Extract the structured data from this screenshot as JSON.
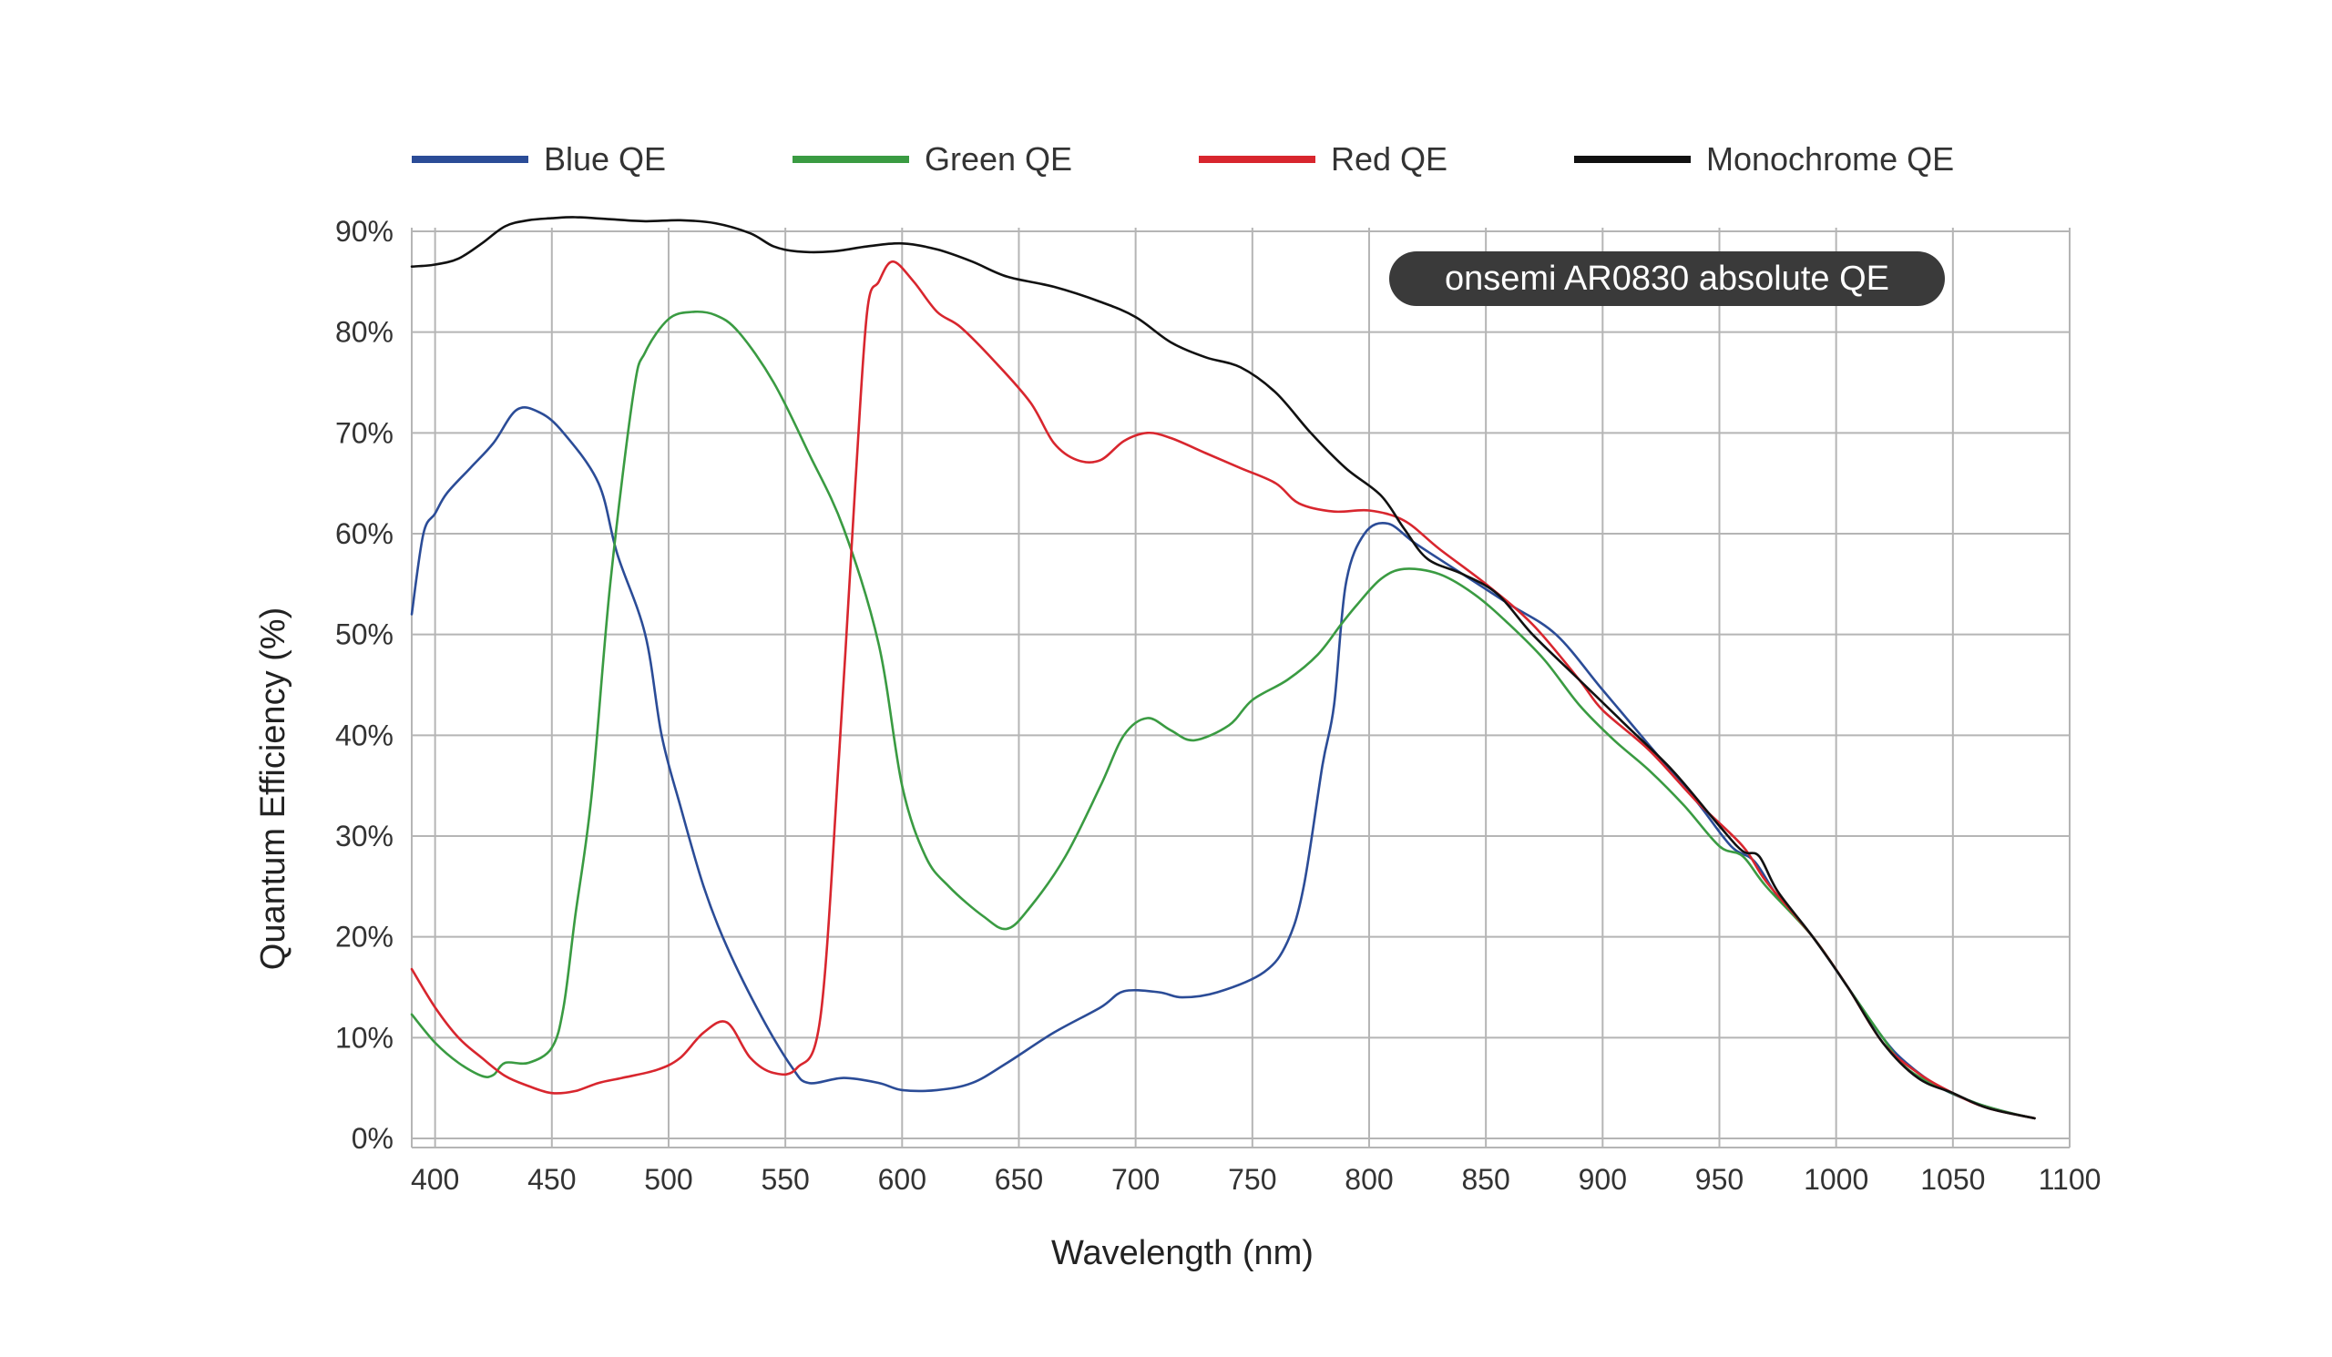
{
  "chart_data": {
    "type": "line",
    "title": "",
    "annotation": "onsemi AR0830 absolute QE",
    "xlabel": "Wavelength (nm)",
    "ylabel": "Quantum Efficiency (%)",
    "xlim": [
      390,
      1100
    ],
    "ylim": [
      0,
      90
    ],
    "x_ticks": [
      400,
      450,
      500,
      550,
      600,
      650,
      700,
      750,
      800,
      850,
      900,
      950,
      1000,
      1050,
      1100
    ],
    "y_ticks": [
      0,
      10,
      20,
      30,
      40,
      50,
      60,
      70,
      80,
      90
    ],
    "y_tick_labels": [
      "0%",
      "10%",
      "20%",
      "30%",
      "40%",
      "50%",
      "60%",
      "70%",
      "80%",
      "90%"
    ],
    "grid": true,
    "legend_position": "top",
    "series": [
      {
        "name": "Blue QE",
        "color": "#2b4c97",
        "points": [
          [
            390,
            52
          ],
          [
            395,
            60
          ],
          [
            400,
            62
          ],
          [
            405,
            64
          ],
          [
            415,
            66.5
          ],
          [
            425,
            69
          ],
          [
            435,
            72.3
          ],
          [
            445,
            72
          ],
          [
            455,
            70
          ],
          [
            470,
            65
          ],
          [
            478,
            58
          ],
          [
            490,
            50
          ],
          [
            497,
            40
          ],
          [
            505,
            33
          ],
          [
            515,
            25
          ],
          [
            525,
            19
          ],
          [
            540,
            12
          ],
          [
            553,
            7
          ],
          [
            560,
            5.5
          ],
          [
            575,
            6
          ],
          [
            590,
            5.5
          ],
          [
            600,
            4.8
          ],
          [
            615,
            4.8
          ],
          [
            630,
            5.5
          ],
          [
            645,
            7.5
          ],
          [
            665,
            10.5
          ],
          [
            685,
            13
          ],
          [
            695,
            14.6
          ],
          [
            710,
            14.5
          ],
          [
            720,
            14
          ],
          [
            735,
            14.5
          ],
          [
            755,
            16.5
          ],
          [
            765,
            19.5
          ],
          [
            772,
            25
          ],
          [
            780,
            37
          ],
          [
            785,
            43
          ],
          [
            790,
            55
          ],
          [
            798,
            60
          ],
          [
            808,
            61
          ],
          [
            820,
            59
          ],
          [
            840,
            56
          ],
          [
            860,
            53
          ],
          [
            880,
            50
          ],
          [
            900,
            44.5
          ],
          [
            920,
            39
          ],
          [
            940,
            33.5
          ],
          [
            955,
            29
          ],
          [
            965,
            27.5
          ],
          [
            975,
            24
          ],
          [
            990,
            20
          ],
          [
            1005,
            15
          ],
          [
            1020,
            10
          ],
          [
            1030,
            7.5
          ],
          [
            1045,
            5
          ],
          [
            1060,
            3.5
          ],
          [
            1075,
            2.5
          ],
          [
            1085,
            2
          ]
        ]
      },
      {
        "name": "Green QE",
        "color": "#3a9b42",
        "points": [
          [
            390,
            12.3
          ],
          [
            400,
            9.5
          ],
          [
            410,
            7.5
          ],
          [
            420,
            6.2
          ],
          [
            425,
            6.3
          ],
          [
            430,
            7.5
          ],
          [
            440,
            7.5
          ],
          [
            450,
            9
          ],
          [
            455,
            13
          ],
          [
            460,
            22
          ],
          [
            467,
            34
          ],
          [
            475,
            55
          ],
          [
            485,
            74
          ],
          [
            490,
            78
          ],
          [
            500,
            81.3
          ],
          [
            510,
            82
          ],
          [
            520,
            81.7
          ],
          [
            530,
            80
          ],
          [
            545,
            75
          ],
          [
            560,
            68
          ],
          [
            575,
            60.5
          ],
          [
            590,
            49
          ],
          [
            600,
            35
          ],
          [
            610,
            28
          ],
          [
            620,
            25
          ],
          [
            635,
            22
          ],
          [
            645,
            20.8
          ],
          [
            655,
            23
          ],
          [
            670,
            28
          ],
          [
            685,
            35
          ],
          [
            695,
            40
          ],
          [
            705,
            41.7
          ],
          [
            715,
            40.5
          ],
          [
            725,
            39.5
          ],
          [
            740,
            41
          ],
          [
            750,
            43.5
          ],
          [
            765,
            45.5
          ],
          [
            778,
            48
          ],
          [
            788,
            51
          ],
          [
            795,
            53
          ],
          [
            805,
            55.5
          ],
          [
            815,
            56.5
          ],
          [
            830,
            56
          ],
          [
            845,
            54
          ],
          [
            860,
            51
          ],
          [
            875,
            47.5
          ],
          [
            890,
            43
          ],
          [
            905,
            39.5
          ],
          [
            920,
            36.5
          ],
          [
            935,
            33
          ],
          [
            950,
            29
          ],
          [
            960,
            28
          ],
          [
            970,
            25
          ],
          [
            990,
            20
          ],
          [
            1005,
            15
          ],
          [
            1020,
            10
          ],
          [
            1030,
            7
          ],
          [
            1045,
            5
          ],
          [
            1060,
            3.5
          ],
          [
            1075,
            2.5
          ],
          [
            1085,
            2
          ]
        ]
      },
      {
        "name": "Red QE",
        "color": "#d8262e",
        "points": [
          [
            390,
            16.8
          ],
          [
            400,
            13
          ],
          [
            410,
            10
          ],
          [
            420,
            8
          ],
          [
            430,
            6.2
          ],
          [
            440,
            5.2
          ],
          [
            450,
            4.5
          ],
          [
            460,
            4.7
          ],
          [
            470,
            5.5
          ],
          [
            480,
            6
          ],
          [
            495,
            6.8
          ],
          [
            505,
            8
          ],
          [
            515,
            10.5
          ],
          [
            525,
            11.5
          ],
          [
            535,
            8
          ],
          [
            545,
            6.5
          ],
          [
            555,
            7
          ],
          [
            565,
            12
          ],
          [
            573,
            38
          ],
          [
            580,
            65
          ],
          [
            585,
            82
          ],
          [
            590,
            85
          ],
          [
            596,
            87
          ],
          [
            605,
            85
          ],
          [
            615,
            82
          ],
          [
            625,
            80.5
          ],
          [
            640,
            77
          ],
          [
            655,
            73
          ],
          [
            665,
            69
          ],
          [
            675,
            67.3
          ],
          [
            685,
            67.3
          ],
          [
            695,
            69.2
          ],
          [
            705,
            70
          ],
          [
            715,
            69.5
          ],
          [
            730,
            68
          ],
          [
            745,
            66.5
          ],
          [
            760,
            65
          ],
          [
            770,
            63
          ],
          [
            785,
            62.2
          ],
          [
            800,
            62.3
          ],
          [
            815,
            61.3
          ],
          [
            830,
            58.5
          ],
          [
            850,
            55
          ],
          [
            870,
            51
          ],
          [
            890,
            45.5
          ],
          [
            900,
            42.5
          ],
          [
            920,
            38.5
          ],
          [
            940,
            33.5
          ],
          [
            960,
            29
          ],
          [
            970,
            25.5
          ],
          [
            990,
            20
          ],
          [
            1005,
            15
          ],
          [
            1020,
            9.5
          ],
          [
            1035,
            6.5
          ],
          [
            1050,
            4.5
          ],
          [
            1065,
            3
          ],
          [
            1085,
            2
          ]
        ]
      },
      {
        "name": "Monochrome QE",
        "color": "#111111",
        "points": [
          [
            390,
            86.5
          ],
          [
            400,
            86.7
          ],
          [
            410,
            87.3
          ],
          [
            420,
            88.8
          ],
          [
            430,
            90.5
          ],
          [
            440,
            91.1
          ],
          [
            450,
            91.3
          ],
          [
            460,
            91.4
          ],
          [
            475,
            91.2
          ],
          [
            490,
            91
          ],
          [
            505,
            91.1
          ],
          [
            520,
            90.8
          ],
          [
            535,
            89.8
          ],
          [
            545,
            88.5
          ],
          [
            555,
            88
          ],
          [
            570,
            88
          ],
          [
            585,
            88.5
          ],
          [
            600,
            88.8
          ],
          [
            615,
            88.2
          ],
          [
            630,
            87
          ],
          [
            645,
            85.5
          ],
          [
            665,
            84.5
          ],
          [
            685,
            83
          ],
          [
            700,
            81.5
          ],
          [
            715,
            79
          ],
          [
            730,
            77.5
          ],
          [
            745,
            76.5
          ],
          [
            760,
            74
          ],
          [
            775,
            70
          ],
          [
            790,
            66.5
          ],
          [
            805,
            63.8
          ],
          [
            815,
            60.5
          ],
          [
            825,
            57.5
          ],
          [
            840,
            56
          ],
          [
            855,
            54
          ],
          [
            870,
            50
          ],
          [
            890,
            45.5
          ],
          [
            910,
            41
          ],
          [
            930,
            36.5
          ],
          [
            950,
            31
          ],
          [
            960,
            28.5
          ],
          [
            967,
            28
          ],
          [
            975,
            24.5
          ],
          [
            990,
            20
          ],
          [
            1005,
            15
          ],
          [
            1020,
            9.5
          ],
          [
            1035,
            6
          ],
          [
            1050,
            4.5
          ],
          [
            1065,
            3
          ],
          [
            1085,
            2
          ]
        ]
      }
    ]
  }
}
